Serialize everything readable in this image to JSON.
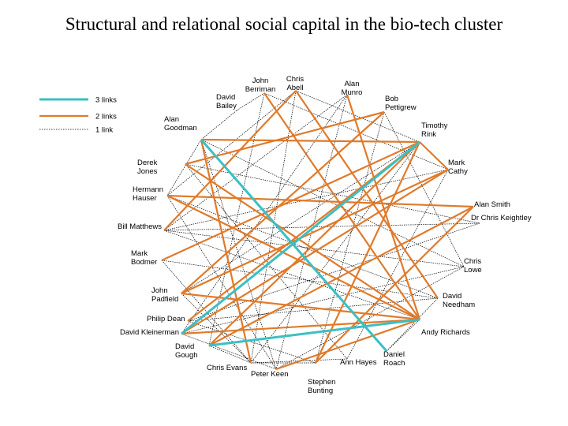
{
  "title": "Structural and relational social capital in the bio-tech cluster",
  "legend": [
    {
      "label": "3 links",
      "weight": 3,
      "color": "#3bbfc4"
    },
    {
      "label": "2 links",
      "weight": 2,
      "color": "#e07a2a"
    },
    {
      "label": "1 link",
      "weight": 1,
      "color": "#000000"
    }
  ],
  "nodes": [
    {
      "id": "john-berriman",
      "lines": [
        "John",
        "Berriman"
      ]
    },
    {
      "id": "chris-abell",
      "lines": [
        "Chris",
        "Abell"
      ]
    },
    {
      "id": "alan-munro",
      "lines": [
        "Alan",
        "Munro"
      ]
    },
    {
      "id": "bob-pettigrew",
      "lines": [
        "Bob",
        "Pettigrew"
      ]
    },
    {
      "id": "david-bailey",
      "lines": [
        "David",
        "Bailey"
      ]
    },
    {
      "id": "alan-goodman",
      "lines": [
        "Alan",
        "Goodman"
      ]
    },
    {
      "id": "timothy-rink",
      "lines": [
        "Timothy",
        "Rink"
      ]
    },
    {
      "id": "derek-jones",
      "lines": [
        "Derek",
        "Jones"
      ]
    },
    {
      "id": "mark-cathy",
      "lines": [
        "Mark",
        "Cathy"
      ]
    },
    {
      "id": "hermann-hauser",
      "lines": [
        "Hermann",
        "Hauser"
      ]
    },
    {
      "id": "alan-smith",
      "lines": [
        "Alan Smith"
      ]
    },
    {
      "id": "dr-chris-keightley",
      "lines": [
        "Dr Chris Keightley"
      ]
    },
    {
      "id": "bill-matthews",
      "lines": [
        "Bill Matthews"
      ]
    },
    {
      "id": "mark-bodmer",
      "lines": [
        "Mark",
        "Bodmer"
      ]
    },
    {
      "id": "chris-lowe",
      "lines": [
        "Chris",
        "Lowe"
      ]
    },
    {
      "id": "john-padfield",
      "lines": [
        "John",
        "Padfield"
      ]
    },
    {
      "id": "david-needham",
      "lines": [
        "David",
        "Needham"
      ]
    },
    {
      "id": "philip-dean",
      "lines": [
        "Philip Dean"
      ]
    },
    {
      "id": "david-kleinerman",
      "lines": [
        "David Kleinerman"
      ]
    },
    {
      "id": "andy-richards",
      "lines": [
        "Andy Richards"
      ]
    },
    {
      "id": "david-gough",
      "lines": [
        "David",
        "Gough"
      ]
    },
    {
      "id": "daniel-roach",
      "lines": [
        "Daniel",
        "Roach"
      ]
    },
    {
      "id": "ann-hayes",
      "lines": [
        "Ann Hayes"
      ]
    },
    {
      "id": "chris-evans",
      "lines": [
        "Chris Evans"
      ]
    },
    {
      "id": "peter-keen",
      "lines": [
        "Peter Keen"
      ]
    },
    {
      "id": "stephen-bunting",
      "lines": [
        "Stephen",
        "Bunting"
      ]
    }
  ],
  "links": [
    {
      "from": "alan-goodman",
      "to": "daniel-roach",
      "weight": 3
    },
    {
      "from": "timothy-rink",
      "to": "david-kleinerman",
      "weight": 3
    },
    {
      "from": "david-gough",
      "to": "andy-richards",
      "weight": 3
    },
    {
      "from": "alan-goodman",
      "to": "timothy-rink",
      "weight": 2
    },
    {
      "from": "alan-goodman",
      "to": "chris-evans",
      "weight": 2
    },
    {
      "from": "chris-abell",
      "to": "bill-matthews",
      "weight": 2
    },
    {
      "from": "chris-abell",
      "to": "david-needham",
      "weight": 2
    },
    {
      "from": "bob-pettigrew",
      "to": "derek-jones",
      "weight": 2
    },
    {
      "from": "bob-pettigrew",
      "to": "john-padfield",
      "weight": 2
    },
    {
      "from": "timothy-rink",
      "to": "stephen-bunting",
      "weight": 2
    },
    {
      "from": "timothy-rink",
      "to": "david-gough",
      "weight": 2
    },
    {
      "from": "timothy-rink",
      "to": "mark-cathy",
      "weight": 2
    },
    {
      "from": "timothy-rink",
      "to": "philip-dean",
      "weight": 2
    },
    {
      "from": "mark-cathy",
      "to": "john-padfield",
      "weight": 2
    },
    {
      "from": "mark-cathy",
      "to": "david-kleinerman",
      "weight": 2
    },
    {
      "from": "hermann-hauser",
      "to": "alan-smith",
      "weight": 2
    },
    {
      "from": "hermann-hauser",
      "to": "andy-richards",
      "weight": 2
    },
    {
      "from": "alan-smith",
      "to": "david-gough",
      "weight": 2
    },
    {
      "from": "alan-smith",
      "to": "stephen-bunting",
      "weight": 2
    },
    {
      "from": "john-padfield",
      "to": "andy-richards",
      "weight": 2
    },
    {
      "from": "david-kleinerman",
      "to": "andy-richards",
      "weight": 2
    },
    {
      "from": "andy-richards",
      "to": "alan-munro",
      "weight": 2
    },
    {
      "from": "andy-richards",
      "to": "derek-jones",
      "weight": 2
    },
    {
      "from": "andy-richards",
      "to": "peter-keen",
      "weight": 2
    },
    {
      "from": "andy-richards",
      "to": "john-berriman",
      "weight": 2
    },
    {
      "from": "mark-bodmer",
      "to": "timothy-rink",
      "weight": 2
    },
    {
      "from": "david-bailey",
      "to": "john-berriman",
      "weight": 1
    },
    {
      "from": "david-bailey",
      "to": "alan-goodman",
      "weight": 1
    },
    {
      "from": "john-berriman",
      "to": "mark-cathy",
      "weight": 1
    },
    {
      "from": "john-berriman",
      "to": "david-gough",
      "weight": 1
    },
    {
      "from": "chris-abell",
      "to": "timothy-rink",
      "weight": 1
    },
    {
      "from": "chris-abell",
      "to": "chris-evans",
      "weight": 1
    },
    {
      "from": "chris-abell",
      "to": "hermann-hauser",
      "weight": 1
    },
    {
      "from": "alan-munro",
      "to": "bill-matthews",
      "weight": 1
    },
    {
      "from": "alan-munro",
      "to": "david-kleinerman",
      "weight": 1
    },
    {
      "from": "alan-munro",
      "to": "peter-keen",
      "weight": 1
    },
    {
      "from": "bob-pettigrew",
      "to": "chris-lowe",
      "weight": 1
    },
    {
      "from": "bob-pettigrew",
      "to": "stephen-bunting",
      "weight": 1
    },
    {
      "from": "alan-goodman",
      "to": "hermann-hauser",
      "weight": 1
    },
    {
      "from": "alan-goodman",
      "to": "chris-lowe",
      "weight": 1
    },
    {
      "from": "alan-goodman",
      "to": "peter-keen",
      "weight": 1
    },
    {
      "from": "derek-jones",
      "to": "dr-chris-keightley",
      "weight": 1
    },
    {
      "from": "derek-jones",
      "to": "ann-hayes",
      "weight": 1
    },
    {
      "from": "timothy-rink",
      "to": "john-padfield",
      "weight": 1
    },
    {
      "from": "timothy-rink",
      "to": "chris-evans",
      "weight": 1
    },
    {
      "from": "mark-cathy",
      "to": "bill-matthews",
      "weight": 1
    },
    {
      "from": "mark-cathy",
      "to": "ann-hayes",
      "weight": 1
    },
    {
      "from": "hermann-hauser",
      "to": "david-needham",
      "weight": 1
    },
    {
      "from": "hermann-hauser",
      "to": "peter-keen",
      "weight": 1
    },
    {
      "from": "dr-chris-keightley",
      "to": "bill-matthews",
      "weight": 1
    },
    {
      "from": "dr-chris-keightley",
      "to": "philip-dean",
      "weight": 1
    },
    {
      "from": "bill-matthews",
      "to": "chris-lowe",
      "weight": 1
    },
    {
      "from": "bill-matthews",
      "to": "andy-richards",
      "weight": 1
    },
    {
      "from": "mark-bodmer",
      "to": "david-needham",
      "weight": 1
    },
    {
      "from": "mark-bodmer",
      "to": "chris-evans",
      "weight": 1
    },
    {
      "from": "chris-lowe",
      "to": "david-kleinerman",
      "weight": 1
    },
    {
      "from": "chris-lowe",
      "to": "peter-keen",
      "weight": 1
    },
    {
      "from": "john-padfield",
      "to": "chris-evans",
      "weight": 1
    },
    {
      "from": "david-needham",
      "to": "philip-dean",
      "weight": 1
    },
    {
      "from": "david-needham",
      "to": "daniel-roach",
      "weight": 1
    },
    {
      "from": "philip-dean",
      "to": "stephen-bunting",
      "weight": 1
    },
    {
      "from": "david-kleinerman",
      "to": "peter-keen",
      "weight": 1
    },
    {
      "from": "david-gough",
      "to": "chris-evans",
      "weight": 1
    },
    {
      "from": "ann-hayes",
      "to": "chris-evans",
      "weight": 1
    },
    {
      "from": "daniel-roach",
      "to": "andy-richards",
      "weight": 1
    },
    {
      "from": "stephen-bunting",
      "to": "chris-evans",
      "weight": 1
    }
  ]
}
